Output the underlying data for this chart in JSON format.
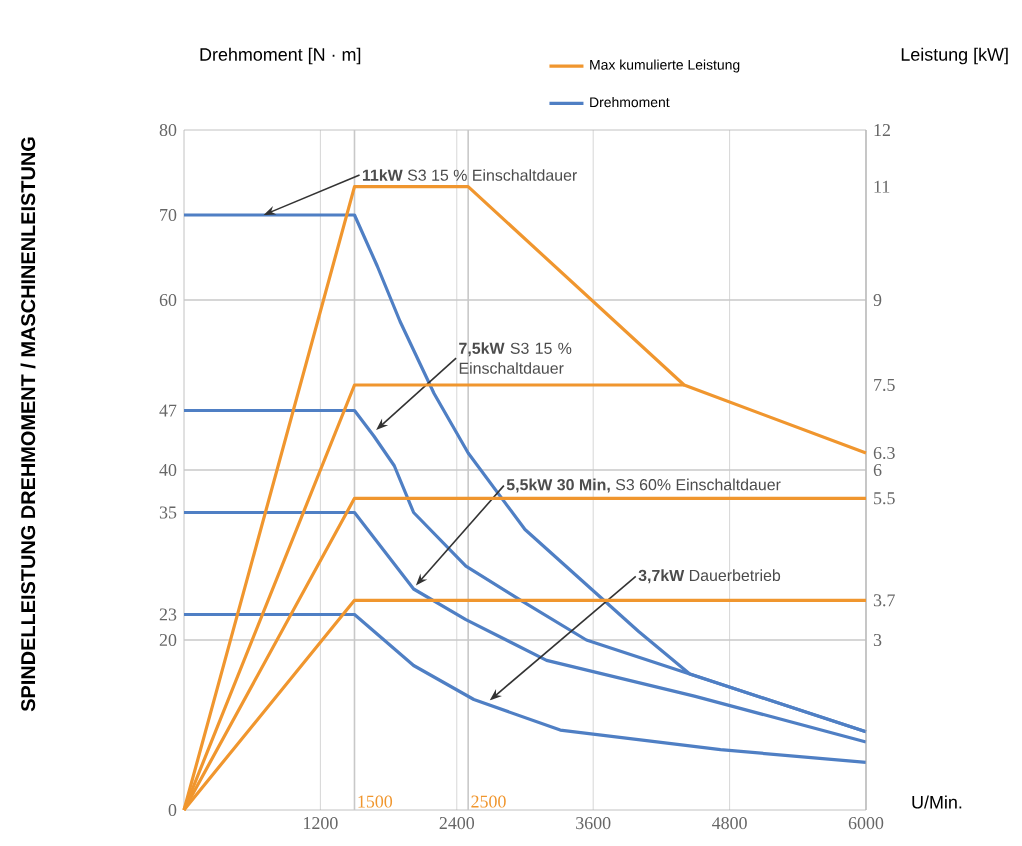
{
  "chart_data": {
    "type": "line",
    "title": "SPINDELLEISTUNG DREHMOMENT / MASCHINENLEISTUNG",
    "xlabel": "U/Min.",
    "ylabel": "Drehmoment [N · m]",
    "y2label": "Leistung [kW]",
    "xlim": [
      0,
      6000
    ],
    "xticks": [
      1200,
      2400,
      3600,
      4800,
      6000
    ],
    "ylim": [
      0,
      80
    ],
    "yticks": [
      0,
      20,
      23,
      35,
      40,
      47,
      60,
      70,
      80
    ],
    "y2lim": [
      0,
      12
    ],
    "y2ticks": [
      3,
      3.7,
      5.5,
      6,
      6.3,
      7.5,
      9,
      11,
      12
    ],
    "grid": "x",
    "legend": "top right",
    "series": [
      {
        "name": "Max kumulierte Leistung",
        "color": "#f0962e",
        "axis": "y2",
        "x": [
          0,
          1500,
          2500,
          4400,
          6000
        ],
        "values": [
          0,
          11,
          11,
          7.5,
          6.3
        ]
      },
      {
        "color": "#f0962e",
        "axis": "y2",
        "x": [
          0,
          1500,
          4400
        ],
        "values": [
          0,
          7.5,
          7.5
        ]
      },
      {
        "color": "#f0962e",
        "axis": "y2",
        "x": [
          0,
          1500,
          6000
        ],
        "values": [
          0,
          5.5,
          5.5
        ]
      },
      {
        "color": "#f0962e",
        "axis": "y2",
        "x": [
          0,
          1500,
          6000
        ],
        "values": [
          0,
          3.7,
          3.7
        ]
      },
      {
        "name": "Drehmoment",
        "color": "#4f7fc4",
        "axis": "y",
        "x": [
          0,
          1500,
          1700,
          1900,
          2200,
          2500,
          3000,
          3500,
          4000,
          4450,
          6000
        ],
        "values": [
          70,
          70,
          64,
          57.5,
          49,
          42,
          33,
          27,
          21,
          16,
          9.2
        ]
      },
      {
        "color": "#4f7fc4",
        "axis": "y",
        "x": [
          0,
          1500,
          1670,
          1850,
          2020,
          2480,
          2960,
          3540,
          4450,
          6000
        ],
        "values": [
          47,
          47,
          44,
          40.5,
          35,
          28.7,
          24.7,
          20,
          16,
          9.2
        ]
      },
      {
        "color": "#4f7fc4",
        "axis": "y",
        "x": [
          0,
          1500,
          2020,
          2480,
          3190,
          4490,
          6000
        ],
        "values": [
          35,
          35,
          26,
          22.4,
          17.6,
          13.4,
          8
        ]
      },
      {
        "color": "#4f7fc4",
        "axis": "y",
        "x": [
          0,
          1500,
          2020,
          2550,
          3310,
          4720,
          6000
        ],
        "values": [
          23,
          23,
          17,
          13,
          9.4,
          7.1,
          5.6
        ]
      }
    ],
    "ref_lines": [
      {
        "axis": "x",
        "value": 1500,
        "label": "1500",
        "color": "#c8c8c8"
      },
      {
        "axis": "x",
        "value": 2500,
        "label": "2500",
        "color": "#c8c8c8"
      },
      {
        "axis": "y",
        "value": 20,
        "color": "#c8c8c8"
      },
      {
        "axis": "y",
        "value": 40,
        "color": "#c8c8c8"
      },
      {
        "axis": "y",
        "value": 60,
        "color": "#c8c8c8"
      }
    ],
    "annotations": [
      {
        "text": "**11kW** S3 15 % Einschaltdauer",
        "x": 700,
        "y": 70
      },
      {
        "text": "**7,5kW** S3 15 % Einschaltdauer",
        "x": 1690,
        "y": 44.7
      },
      {
        "text": "**5,5kW 30 Min,** S3 60% Einschaltdauer",
        "x": 2040,
        "y": 26.4
      },
      {
        "text": "**3,7kW** Dauerbetrieb",
        "x": 2690,
        "y": 12.9
      }
    ]
  }
}
